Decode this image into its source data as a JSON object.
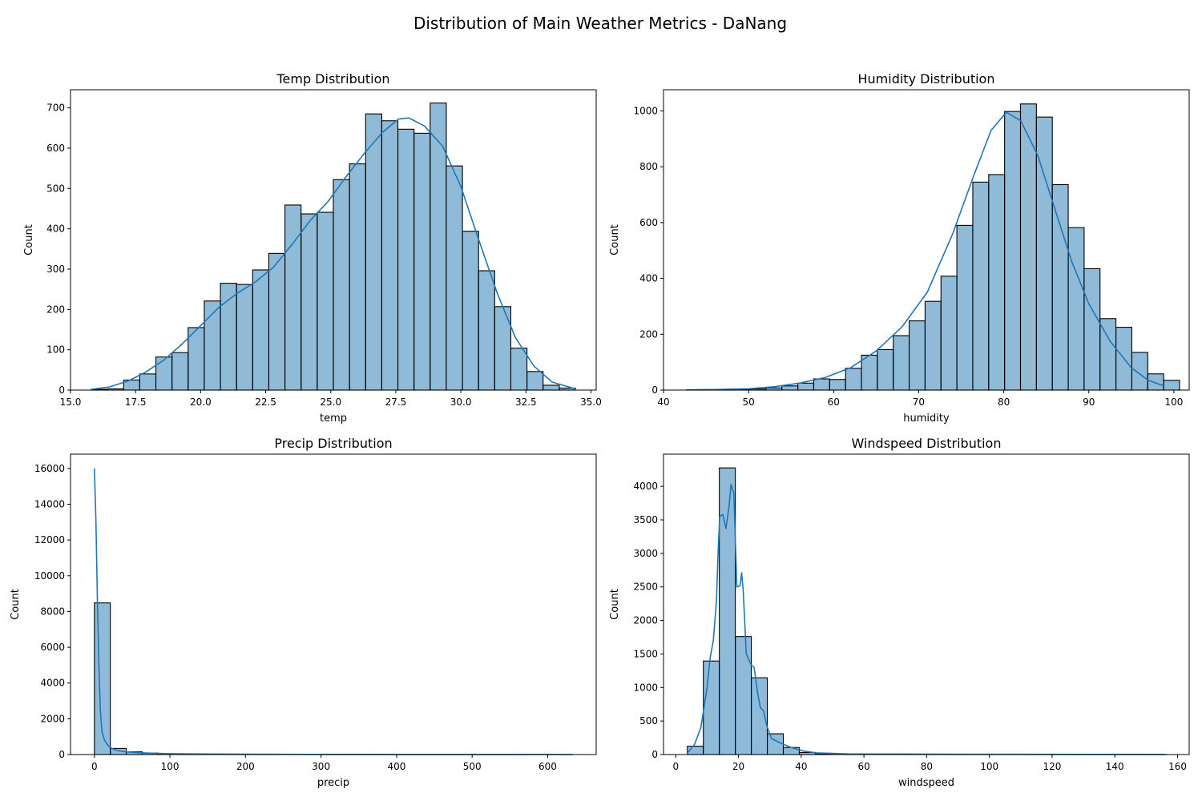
{
  "figure": {
    "suptitle": "Distribution of Main Weather Metrics - DaNang"
  },
  "chart_data": [
    {
      "type": "bar",
      "title": "Temp Distribution",
      "xlabel": "temp",
      "ylabel": "Count",
      "xlim": [
        15.0,
        35.2
      ],
      "ylim": [
        0,
        745
      ],
      "xticks": [
        15.0,
        17.5,
        20.0,
        22.5,
        25.0,
        27.5,
        30.0,
        32.5,
        35.0
      ],
      "xtick_labels": [
        "15.0",
        "17.5",
        "20.0",
        "22.5",
        "25.0",
        "27.5",
        "30.0",
        "32.5",
        "35.0"
      ],
      "yticks": [
        0,
        100,
        200,
        300,
        400,
        500,
        600,
        700
      ],
      "ytick_labels": [
        "0",
        "100",
        "200",
        "300",
        "400",
        "500",
        "600",
        "700"
      ],
      "bin_start": 15.8,
      "bin_width": 0.62,
      "values": [
        2,
        3,
        25,
        40,
        82,
        93,
        155,
        221,
        265,
        262,
        298,
        339,
        459,
        437,
        441,
        522,
        561,
        685,
        668,
        647,
        637,
        712,
        556,
        394,
        296,
        207,
        104,
        46,
        12,
        5
      ],
      "kde": {
        "x": [
          15.8,
          16.5,
          17.2,
          17.9,
          18.6,
          19.3,
          20.0,
          20.7,
          21.4,
          22.1,
          22.8,
          23.5,
          24.2,
          24.9,
          25.6,
          26.3,
          27.0,
          27.6,
          28.0,
          28.6,
          29.3,
          30.0,
          30.7,
          31.4,
          32.1,
          32.8,
          33.5,
          34.4
        ],
        "y": [
          2,
          8,
          22,
          45,
          75,
          115,
          160,
          205,
          240,
          268,
          305,
          360,
          420,
          468,
          530,
          588,
          640,
          672,
          675,
          655,
          605,
          505,
          370,
          240,
          130,
          60,
          20,
          3
        ]
      }
    },
    {
      "type": "bar",
      "title": "Humidity Distribution",
      "xlabel": "humidity",
      "ylabel": "Count",
      "xlim": [
        40,
        101.8
      ],
      "ylim": [
        0,
        1076
      ],
      "xticks": [
        40,
        50,
        60,
        70,
        80,
        90,
        100
      ],
      "xtick_labels": [
        "40",
        "50",
        "60",
        "70",
        "80",
        "90",
        "100"
      ],
      "yticks": [
        0,
        200,
        400,
        600,
        800,
        1000
      ],
      "ytick_labels": [
        "0",
        "200",
        "400",
        "600",
        "800",
        "1000"
      ],
      "bin_start": 42.7,
      "bin_width": 1.87,
      "values": [
        1,
        1,
        2,
        3,
        4,
        8,
        15,
        25,
        40,
        38,
        78,
        125,
        145,
        195,
        248,
        318,
        408,
        590,
        745,
        772,
        998,
        1025,
        978,
        736,
        582,
        435,
        256,
        225,
        135,
        58,
        35
      ],
      "kde": {
        "x": [
          42.7,
          46,
          50,
          53,
          56,
          59,
          62,
          65,
          68,
          71,
          74,
          76.5,
          78.5,
          80.3,
          82,
          84,
          86,
          88,
          90,
          92.5,
          95,
          97,
          98.8
        ],
        "y": [
          1,
          2,
          5,
          12,
          25,
          45,
          80,
          140,
          225,
          350,
          560,
          770,
          930,
          995,
          965,
          840,
          650,
          460,
          310,
          175,
          80,
          35,
          15
        ]
      }
    },
    {
      "type": "bar",
      "title": "Precip Distribution",
      "xlabel": "precip",
      "ylabel": "Count",
      "xlim": [
        -31.6,
        664.2
      ],
      "ylim": [
        0,
        16800
      ],
      "xticks": [
        0,
        100,
        200,
        300,
        400,
        500,
        600
      ],
      "xtick_labels": [
        "0",
        "100",
        "200",
        "300",
        "400",
        "500",
        "600"
      ],
      "yticks": [
        0,
        2000,
        4000,
        6000,
        8000,
        10000,
        12000,
        14000,
        16000
      ],
      "ytick_labels": [
        "0",
        "2000",
        "4000",
        "6000",
        "8000",
        "10000",
        "12000",
        "14000",
        "16000"
      ],
      "bin_start": 0,
      "bin_width": 21.1,
      "values": [
        8480,
        340,
        150,
        80,
        45,
        28,
        20,
        15,
        12,
        9,
        7,
        6,
        5,
        4,
        3,
        3,
        3,
        2,
        2,
        2,
        1,
        1,
        1,
        1,
        1,
        1,
        1,
        1,
        1,
        1
      ],
      "kde": {
        "x": [
          0,
          2,
          4,
          6,
          8,
          10,
          13,
          16,
          20,
          25,
          30,
          40,
          50,
          60,
          80,
          100,
          150,
          200,
          300,
          400,
          500,
          633
        ],
        "y": [
          16000,
          13100,
          8500,
          5000,
          2400,
          1300,
          850,
          620,
          420,
          300,
          230,
          160,
          120,
          100,
          70,
          50,
          30,
          20,
          10,
          5,
          3,
          2
        ]
      }
    },
    {
      "type": "bar",
      "title": "Windspeed Distribution",
      "xlabel": "windspeed",
      "ylabel": "Count",
      "xlim": [
        -3.9,
        163.7
      ],
      "ylim": [
        0,
        4480
      ],
      "xticks": [
        0,
        20,
        40,
        60,
        80,
        100,
        120,
        140,
        160
      ],
      "xtick_labels": [
        "0",
        "20",
        "40",
        "60",
        "80",
        "100",
        "120",
        "140",
        "160"
      ],
      "yticks": [
        0,
        500,
        1000,
        1500,
        2000,
        2500,
        3000,
        3500,
        4000
      ],
      "ytick_labels": [
        "0",
        "500",
        "1000",
        "1500",
        "2000",
        "2500",
        "3000",
        "3500",
        "4000"
      ],
      "bin_start": 3.7,
      "bin_width": 5.1,
      "values": [
        125,
        1395,
        4275,
        1760,
        1145,
        310,
        105,
        30,
        10,
        5,
        3,
        2,
        2,
        1,
        1,
        1,
        1,
        1,
        1,
        1,
        1,
        1,
        1,
        1,
        1,
        1,
        1,
        1,
        1,
        1
      ],
      "kde": {
        "x": [
          3.7,
          6,
          8,
          10,
          11,
          12,
          13,
          13.5,
          14,
          15,
          16,
          17,
          17.6,
          18.5,
          19.5,
          20.5,
          21,
          21.5,
          22.5,
          24,
          25,
          26,
          27,
          28,
          29,
          30.5,
          33,
          37,
          41,
          45,
          55,
          70,
          85,
          100,
          130,
          156
        ],
        "y": [
          20,
          150,
          400,
          1000,
          1450,
          1700,
          2300,
          3000,
          3550,
          3580,
          3370,
          3700,
          4030,
          3900,
          2500,
          2520,
          2710,
          2460,
          1500,
          1340,
          1300,
          950,
          700,
          650,
          430,
          240,
          180,
          100,
          50,
          25,
          10,
          8,
          5,
          3,
          2,
          1
        ]
      }
    }
  ]
}
